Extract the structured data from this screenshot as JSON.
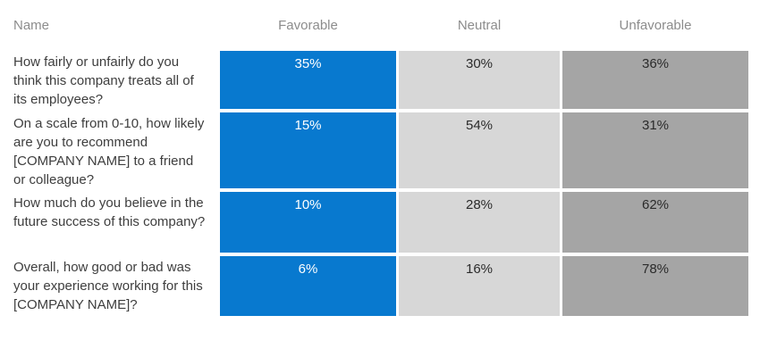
{
  "header": {
    "name_label": "Name",
    "columns": [
      {
        "label": "Favorable"
      },
      {
        "label": "Neutral"
      },
      {
        "label": "Unfavorable"
      }
    ]
  },
  "rows": [
    {
      "question": "How fairly or unfairly do you think this company treats all of its employees?",
      "favorable": "35%",
      "neutral": "30%",
      "unfavorable": "36%"
    },
    {
      "question": "On a scale from 0-10, how likely are you to recommend [COMPANY NAME] to a friend or colleague?",
      "favorable": "15%",
      "neutral": "54%",
      "unfavorable": "31%"
    },
    {
      "question": "How much do you believe in the future success of this company?",
      "favorable": "10%",
      "neutral": "28%",
      "unfavorable": "62%"
    },
    {
      "question": "Overall, how good or bad was your experience working for this [COMPANY NAME]?",
      "favorable": "6%",
      "neutral": "16%",
      "unfavorable": "78%"
    }
  ],
  "colors": {
    "favorable": "#0879cf",
    "neutral": "#d7d7d7",
    "unfavorable": "#a5a5a5",
    "header_text": "#8c8c8c",
    "question_text": "#3e3e3e"
  },
  "chart_data": {
    "type": "table",
    "categories": [
      "Favorable",
      "Neutral",
      "Unfavorable"
    ],
    "rows": [
      {
        "name": "How fairly or unfairly do you think this company treats all of its employees?",
        "values": [
          35,
          30,
          36
        ]
      },
      {
        "name": "On a scale from 0-10, how likely are you to recommend [COMPANY NAME] to a friend or colleague?",
        "values": [
          15,
          54,
          31
        ]
      },
      {
        "name": "How much do you believe in the future success of this company?",
        "values": [
          10,
          28,
          62
        ]
      },
      {
        "name": "Overall, how good or bad was your experience working for this [COMPANY NAME]?",
        "values": [
          6,
          16,
          78
        ]
      }
    ],
    "value_unit": "%",
    "legend_position": "top",
    "grid": false
  }
}
